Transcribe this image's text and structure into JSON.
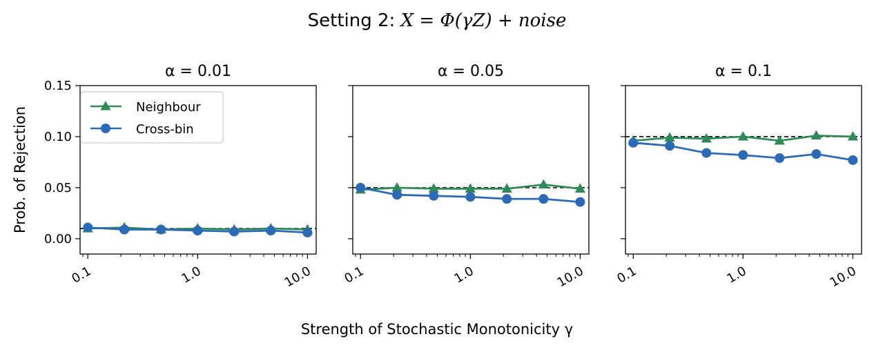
{
  "figure": {
    "title_prefix": "Setting 2: ",
    "title_math": "X = Φ(γZ) + noise",
    "xlabel": "Strength of Stochastic Monotonicity γ",
    "ylabel": "Prob. of Rejection"
  },
  "legend": {
    "items": [
      {
        "label": "Neighbour",
        "color": "#2e8b57",
        "marker": "triangle"
      },
      {
        "label": "Cross-bin",
        "color": "#2a6ab6",
        "marker": "circle"
      }
    ]
  },
  "colors": {
    "neighbour": "#2e8b57",
    "crossbin": "#2a6ab6",
    "reference": "#000000"
  },
  "chart_data": [
    {
      "type": "line",
      "title": "α = 0.01",
      "xscale": "log",
      "x": [
        0.1,
        0.215,
        0.464,
        1.0,
        2.15,
        4.64,
        10.0
      ],
      "xlim": [
        0.085,
        12.0
      ],
      "ylim": [
        -0.015,
        0.15
      ],
      "xticks": [
        0.1,
        1.0,
        10.0
      ],
      "xtick_labels": [
        "0.1",
        "1.0",
        "10.0"
      ],
      "yticks": [
        0.0,
        0.05,
        0.1,
        0.15
      ],
      "ytick_labels": [
        "0.00",
        "0.05",
        "0.10",
        "0.15"
      ],
      "reference_line": 0.01,
      "series": [
        {
          "name": "Neighbour",
          "values": [
            0.01,
            0.011,
            0.009,
            0.01,
            0.009,
            0.01,
            0.009
          ]
        },
        {
          "name": "Cross-bin",
          "values": [
            0.011,
            0.009,
            0.009,
            0.008,
            0.007,
            0.008,
            0.006
          ]
        }
      ]
    },
    {
      "type": "line",
      "title": "α = 0.05",
      "xscale": "log",
      "x": [
        0.1,
        0.215,
        0.464,
        1.0,
        2.15,
        4.64,
        10.0
      ],
      "xlim": [
        0.085,
        12.0
      ],
      "ylim": [
        -0.015,
        0.15
      ],
      "xticks": [
        0.1,
        1.0,
        10.0
      ],
      "xtick_labels": [
        "0.1",
        "1.0",
        "10.0"
      ],
      "yticks": [
        0.0,
        0.05,
        0.1,
        0.15
      ],
      "ytick_labels": [
        "",
        "",
        "",
        ""
      ],
      "reference_line": 0.05,
      "series": [
        {
          "name": "Neighbour",
          "values": [
            0.048,
            0.05,
            0.049,
            0.049,
            0.049,
            0.053,
            0.049
          ]
        },
        {
          "name": "Cross-bin",
          "values": [
            0.05,
            0.043,
            0.042,
            0.041,
            0.039,
            0.039,
            0.036
          ]
        }
      ]
    },
    {
      "type": "line",
      "title": "α = 0.1",
      "xscale": "log",
      "x": [
        0.1,
        0.215,
        0.464,
        1.0,
        2.15,
        4.64,
        10.0
      ],
      "xlim": [
        0.085,
        12.0
      ],
      "ylim": [
        -0.015,
        0.15
      ],
      "xticks": [
        0.1,
        1.0,
        10.0
      ],
      "xtick_labels": [
        "0.1",
        "1.0",
        "10.0"
      ],
      "yticks": [
        0.0,
        0.05,
        0.1,
        0.15
      ],
      "ytick_labels": [
        "",
        "",
        "",
        ""
      ],
      "reference_line": 0.1,
      "series": [
        {
          "name": "Neighbour",
          "values": [
            0.096,
            0.099,
            0.098,
            0.1,
            0.096,
            0.101,
            0.1
          ]
        },
        {
          "name": "Cross-bin",
          "values": [
            0.094,
            0.091,
            0.084,
            0.082,
            0.079,
            0.083,
            0.077
          ]
        }
      ]
    }
  ]
}
